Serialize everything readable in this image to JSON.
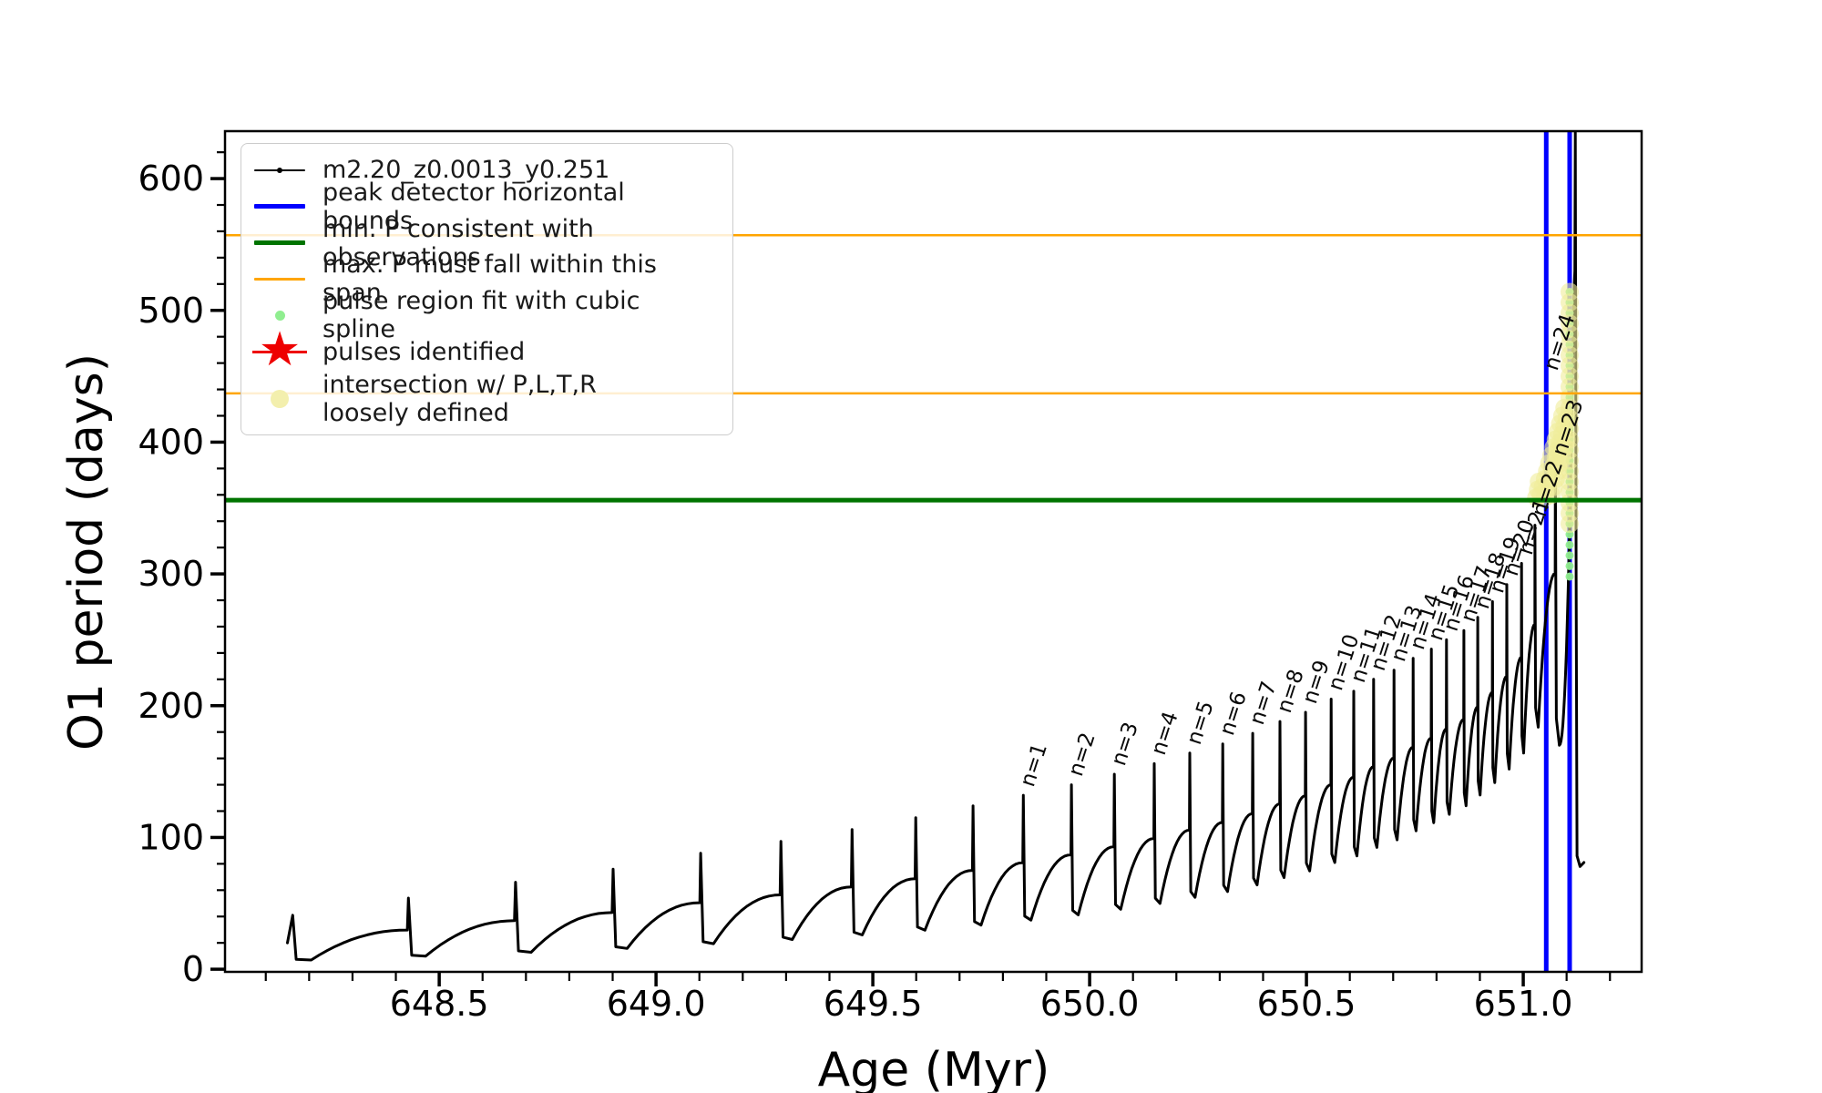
{
  "figure": {
    "background": "#ffffff"
  },
  "colors": {
    "track": "#000000",
    "peak_bounds": "#0000ff",
    "min_period": "#007400",
    "span": "#ffa500",
    "spline_dot": "#90ee90",
    "pulse_star": "#ee0000",
    "intersection_dot": "#f0ec9a",
    "legend_intersection_dot": "#f3efad"
  },
  "legend": {
    "items": [
      {
        "label": "m2.20_z0.0013_y0.251",
        "type": "line-dot",
        "color": "#000000"
      },
      {
        "label": "peak detector horizontal bounds",
        "type": "thick-line",
        "color": "#0000ff"
      },
      {
        "label": "min. P consistent with observations",
        "type": "thick-line",
        "color": "#007400"
      },
      {
        "label": "max. P must fall within this span",
        "type": "thin-line",
        "color": "#ffa500"
      },
      {
        "label": "pulse region fit with cubic spline",
        "type": "small-dot",
        "color": "#90ee90"
      },
      {
        "label": "pulses identified",
        "type": "star",
        "color": "#ee0000"
      },
      {
        "label": "intersection w/ P,L,T,R\nloosely defined",
        "type": "big-dot",
        "color": "#f3efad"
      }
    ]
  },
  "chart_data": {
    "type": "line",
    "title": "",
    "xlabel": "Age (Myr)",
    "ylabel": "O1 period (days)",
    "xlim": [
      648.006,
      651.273
    ],
    "ylim": [
      -2,
      636
    ],
    "grid": false,
    "legend_position": "upper left",
    "xticks": [
      648.5,
      649.0,
      649.5,
      650.0,
      650.5,
      651.0
    ],
    "xtick_labels": [
      "648.5",
      "649.0",
      "649.5",
      "650.0",
      "650.5",
      "651.0"
    ],
    "x_minor_step": 0.1,
    "x_minor_range": [
      648.1,
      651.2
    ],
    "yticks": [
      0,
      100,
      200,
      300,
      400,
      500,
      600
    ],
    "y_minor_step": 20,
    "y_minor_range": [
      0,
      620
    ],
    "series_label": "m2.20_z0.0013_y0.251",
    "track": {
      "start_point": [
        648.15,
        20
      ],
      "pulses": [
        {
          "n": null,
          "label": null,
          "age": 648.162,
          "peak": 41
        },
        {
          "n": null,
          "label": null,
          "age": 648.429,
          "peak": 54
        },
        {
          "n": null,
          "label": null,
          "age": 648.676,
          "peak": 66
        },
        {
          "n": null,
          "label": null,
          "age": 648.901,
          "peak": 76
        },
        {
          "n": null,
          "label": null,
          "age": 649.103,
          "peak": 88
        },
        {
          "n": null,
          "label": null,
          "age": 649.288,
          "peak": 97
        },
        {
          "n": null,
          "label": null,
          "age": 649.452,
          "peak": 106
        },
        {
          "n": null,
          "label": null,
          "age": 649.599,
          "peak": 115
        },
        {
          "n": null,
          "label": null,
          "age": 649.731,
          "peak": 124
        },
        {
          "n": 1,
          "label": "n=1",
          "age": 649.847,
          "peak": 132
        },
        {
          "n": 2,
          "label": "n=2",
          "age": 649.958,
          "peak": 140
        },
        {
          "n": 3,
          "label": "n=3",
          "age": 650.057,
          "peak": 148
        },
        {
          "n": 4,
          "label": "n=4",
          "age": 650.149,
          "peak": 156
        },
        {
          "n": 5,
          "label": "n=5",
          "age": 650.231,
          "peak": 164
        },
        {
          "n": 6,
          "label": "n=6",
          "age": 650.307,
          "peak": 171
        },
        {
          "n": 7,
          "label": "n=7",
          "age": 650.376,
          "peak": 179
        },
        {
          "n": 8,
          "label": "n=8",
          "age": 650.439,
          "peak": 188
        },
        {
          "n": 9,
          "label": "n=9",
          "age": 650.498,
          "peak": 195
        },
        {
          "n": 10,
          "label": "n=10",
          "age": 650.557,
          "peak": 205
        },
        {
          "n": 11,
          "label": "n=11",
          "age": 650.609,
          "peak": 211
        },
        {
          "n": 12,
          "label": "n=12",
          "age": 650.655,
          "peak": 220
        },
        {
          "n": 13,
          "label": "n=13",
          "age": 650.702,
          "peak": 227
        },
        {
          "n": 14,
          "label": "n=14",
          "age": 650.746,
          "peak": 236
        },
        {
          "n": 15,
          "label": "n=15",
          "age": 650.788,
          "peak": 243
        },
        {
          "n": 16,
          "label": "n=16",
          "age": 650.823,
          "peak": 250
        },
        {
          "n": 17,
          "label": "n=17",
          "age": 650.863,
          "peak": 257
        },
        {
          "n": 18,
          "label": "n=18",
          "age": 650.895,
          "peak": 267
        },
        {
          "n": 19,
          "label": "n=19",
          "age": 650.929,
          "peak": 279
        },
        {
          "n": 20,
          "label": "n=20",
          "age": 650.962,
          "peak": 292
        },
        {
          "n": 21,
          "label": "n=21",
          "age": 650.996,
          "peak": 308
        },
        {
          "n": 22,
          "label": "n=22",
          "age": 651.027,
          "peak": 337
        },
        {
          "n": 23,
          "label": "n=23",
          "age": 651.074,
          "peak": 383
        },
        {
          "n": 24,
          "label": "n=24",
          "age": 651.12,
          "peak": 636,
          "label_period": 448
        }
      ],
      "end_tail": [
        [
          651.122,
          300
        ],
        [
          651.124,
          86
        ],
        [
          651.131,
          78
        ],
        [
          651.14,
          81
        ]
      ]
    },
    "hlines": [
      {
        "name": "min-period",
        "legend_label": "min. P consistent with observations",
        "value": 356,
        "color": "#007400",
        "width": 5
      },
      {
        "name": "max-span-lower",
        "legend_label": "max. P must fall within this span",
        "value": 437,
        "color": "#ffa500",
        "width": 2.5
      },
      {
        "name": "max-span-upper",
        "legend_label": "max. P must fall within this span",
        "value": 557,
        "color": "#ffa500",
        "width": 2.5
      }
    ],
    "vlines": {
      "legend_label": "peak detector horizontal bounds",
      "ages": [
        651.053,
        651.107
      ],
      "color": "#0000ff",
      "width": 5
    },
    "spline_fit_dots": {
      "color": "#90ee90",
      "radius": 4.5,
      "age": 651.107,
      "periods": [
        298,
        306,
        314,
        322,
        330,
        338,
        346,
        354,
        362,
        370,
        378,
        386,
        394,
        402,
        410,
        418,
        426,
        434,
        442,
        450,
        458,
        466,
        474,
        482,
        490,
        498,
        506,
        514
      ]
    },
    "intersection_dots": {
      "color": "#f0ec9a",
      "radius": 10,
      "opacity": 0.6,
      "points": [
        [
          651.03,
          358
        ],
        [
          651.034,
          364
        ],
        [
          651.036,
          370
        ],
        [
          651.04,
          360
        ],
        [
          651.045,
          366
        ],
        [
          651.05,
          372
        ],
        [
          651.055,
          378
        ],
        [
          651.06,
          384
        ],
        [
          651.065,
          390
        ],
        [
          651.07,
          396
        ],
        [
          651.075,
          402
        ],
        [
          651.08,
          408
        ],
        [
          651.085,
          414
        ],
        [
          651.09,
          420
        ],
        [
          651.095,
          426
        ],
        [
          651.05,
          358
        ],
        [
          651.055,
          364
        ],
        [
          651.06,
          370
        ],
        [
          651.065,
          376
        ],
        [
          651.07,
          382
        ],
        [
          651.075,
          388
        ],
        [
          651.08,
          394
        ],
        [
          651.085,
          400
        ],
        [
          651.09,
          406
        ],
        [
          651.095,
          412
        ],
        [
          651.1,
          418
        ],
        [
          651.065,
          360
        ],
        [
          651.07,
          366
        ],
        [
          651.075,
          372
        ],
        [
          651.08,
          378
        ],
        [
          651.085,
          384
        ],
        [
          651.09,
          390
        ],
        [
          651.095,
          396
        ],
        [
          651.1,
          402
        ],
        [
          651.107,
          338
        ],
        [
          651.107,
          346
        ],
        [
          651.107,
          354
        ],
        [
          651.107,
          362
        ],
        [
          651.107,
          370
        ],
        [
          651.107,
          378
        ],
        [
          651.107,
          386
        ],
        [
          651.107,
          394
        ],
        [
          651.107,
          402
        ],
        [
          651.107,
          410
        ],
        [
          651.107,
          418
        ],
        [
          651.107,
          426
        ],
        [
          651.107,
          434
        ],
        [
          651.107,
          442
        ],
        [
          651.107,
          450
        ],
        [
          651.107,
          458
        ],
        [
          651.107,
          466
        ],
        [
          651.107,
          474
        ],
        [
          651.107,
          482
        ],
        [
          651.107,
          490
        ],
        [
          651.107,
          498
        ],
        [
          651.107,
          506
        ],
        [
          651.107,
          514
        ]
      ]
    },
    "pulses_identified_stars": []
  }
}
